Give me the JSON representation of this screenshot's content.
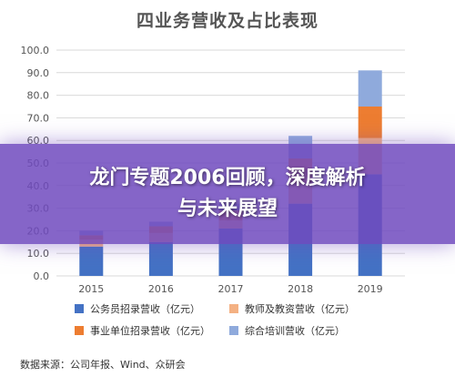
{
  "chart_data": {
    "type": "bar",
    "stacked": true,
    "title": "四业务营收及占比表现",
    "categories": [
      "2015",
      "2016",
      "2017",
      "2018",
      "2019"
    ],
    "ylim": [
      0,
      100
    ],
    "yticks": [
      "0.0",
      "10.0",
      "20.0",
      "30.0",
      "40.0",
      "50.0",
      "60.0",
      "70.0",
      "80.0",
      "90.0",
      "100.0"
    ],
    "grid": true,
    "legend_position": "bottom",
    "series": [
      {
        "name": "公务员招录营收（亿元）",
        "color": "#4472C4",
        "values": [
          13.0,
          15.0,
          21.0,
          32.0,
          45.0
        ]
      },
      {
        "name": "教师及教资营收（亿元）",
        "color": "#F4B183",
        "values": [
          3.0,
          4.0,
          3.5,
          9.0,
          16.0
        ]
      },
      {
        "name": "事业单位招录营收（亿元）",
        "color": "#ED7D31",
        "values": [
          2.0,
          3.0,
          4.5,
          11.0,
          14.0
        ]
      },
      {
        "name": "综合培训营收（亿元）",
        "color": "#8FAADC",
        "values": [
          2.0,
          2.0,
          3.0,
          10.0,
          16.0
        ]
      }
    ]
  },
  "source": "数据来源：公司年报、Wind、众研会",
  "banner": {
    "line1": "龙门专题2006回顾，深度解析",
    "line2": "与未来展望"
  }
}
